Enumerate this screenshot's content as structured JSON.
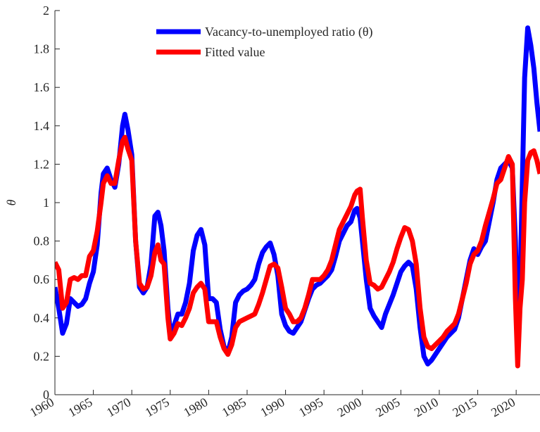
{
  "chart_data": {
    "type": "line",
    "ylabel": "θ",
    "x": [
      1960,
      1960.5,
      1961,
      1961.5,
      1962,
      1962.5,
      1963,
      1963.5,
      1964,
      1964.5,
      1965,
      1965.5,
      1966,
      1966.3,
      1966.8,
      1967.3,
      1967.8,
      1968.3,
      1968.8,
      1969.1,
      1969.5,
      1970,
      1970.5,
      1971,
      1971.5,
      1972,
      1972.5,
      1973,
      1973.4,
      1973.8,
      1974.2,
      1974.7,
      1975,
      1975.5,
      1976,
      1976.5,
      1977,
      1977.5,
      1978,
      1978.5,
      1979,
      1979.5,
      1980,
      1980.5,
      1981,
      1981.5,
      1982,
      1982.5,
      1983,
      1983.5,
      1984,
      1984.5,
      1985,
      1985.5,
      1986,
      1986.5,
      1987,
      1987.5,
      1988,
      1988.5,
      1989,
      1989.5,
      1990,
      1990.5,
      1991,
      1991.5,
      1992,
      1992.5,
      1993,
      1993.5,
      1994,
      1994.5,
      1995,
      1995.5,
      1996,
      1996.5,
      1997,
      1997.5,
      1998,
      1998.5,
      1999,
      1999.3,
      1999.7,
      2000,
      2000.5,
      2001,
      2001.5,
      2002,
      2002.5,
      2003,
      2003.5,
      2004,
      2004.5,
      2005,
      2005.5,
      2006,
      2006.5,
      2007,
      2007.5,
      2008,
      2008.5,
      2009,
      2009.5,
      2010,
      2010.5,
      2011,
      2011.5,
      2012,
      2012.5,
      2013,
      2013.5,
      2014,
      2014.5,
      2015,
      2015.5,
      2016,
      2016.5,
      2017,
      2017.5,
      2018,
      2018.5,
      2019,
      2019.5,
      2019.9,
      2020.2,
      2020.5,
      2020.8,
      2021.1,
      2021.5,
      2021.9,
      2022.3,
      2022.7,
      2023.1
    ],
    "series": [
      {
        "name": "Vacancy-to-unemployed ratio (θ)",
        "color": "#0000ff",
        "values": [
          0.56,
          0.45,
          0.32,
          0.37,
          0.5,
          0.48,
          0.46,
          0.47,
          0.5,
          0.58,
          0.64,
          0.78,
          1.05,
          1.15,
          1.18,
          1.12,
          1.08,
          1.2,
          1.4,
          1.46,
          1.38,
          1.25,
          0.8,
          0.56,
          0.53,
          0.56,
          0.68,
          0.93,
          0.95,
          0.88,
          0.75,
          0.45,
          0.33,
          0.36,
          0.42,
          0.42,
          0.48,
          0.58,
          0.75,
          0.83,
          0.86,
          0.78,
          0.5,
          0.5,
          0.48,
          0.34,
          0.25,
          0.22,
          0.3,
          0.48,
          0.52,
          0.54,
          0.55,
          0.57,
          0.6,
          0.68,
          0.74,
          0.77,
          0.79,
          0.73,
          0.62,
          0.42,
          0.36,
          0.33,
          0.32,
          0.35,
          0.38,
          0.44,
          0.5,
          0.55,
          0.57,
          0.58,
          0.6,
          0.62,
          0.65,
          0.72,
          0.8,
          0.84,
          0.88,
          0.9,
          0.96,
          0.97,
          0.92,
          0.8,
          0.6,
          0.45,
          0.41,
          0.38,
          0.35,
          0.42,
          0.47,
          0.52,
          0.58,
          0.64,
          0.67,
          0.69,
          0.67,
          0.55,
          0.35,
          0.2,
          0.16,
          0.18,
          0.21,
          0.24,
          0.27,
          0.3,
          0.32,
          0.34,
          0.4,
          0.5,
          0.6,
          0.7,
          0.76,
          0.73,
          0.77,
          0.8,
          0.9,
          1.0,
          1.12,
          1.18,
          1.2,
          1.22,
          1.18,
          0.8,
          0.3,
          0.55,
          1.1,
          1.65,
          1.91,
          1.82,
          1.7,
          1.52,
          1.37
        ]
      },
      {
        "name": "Fitted value",
        "color": "#ff0000",
        "values": [
          0.69,
          0.65,
          0.45,
          0.48,
          0.6,
          0.61,
          0.6,
          0.62,
          0.62,
          0.72,
          0.75,
          0.85,
          1.0,
          1.1,
          1.14,
          1.1,
          1.1,
          1.22,
          1.32,
          1.34,
          1.28,
          1.22,
          0.8,
          0.58,
          0.55,
          0.56,
          0.62,
          0.74,
          0.78,
          0.7,
          0.68,
          0.4,
          0.29,
          0.32,
          0.37,
          0.36,
          0.4,
          0.45,
          0.53,
          0.56,
          0.58,
          0.55,
          0.38,
          0.38,
          0.38,
          0.3,
          0.24,
          0.21,
          0.26,
          0.35,
          0.38,
          0.39,
          0.4,
          0.41,
          0.42,
          0.47,
          0.53,
          0.6,
          0.67,
          0.68,
          0.66,
          0.56,
          0.45,
          0.42,
          0.38,
          0.38,
          0.4,
          0.45,
          0.52,
          0.6,
          0.6,
          0.6,
          0.62,
          0.65,
          0.7,
          0.78,
          0.86,
          0.9,
          0.94,
          0.98,
          1.04,
          1.06,
          1.07,
          0.92,
          0.7,
          0.58,
          0.57,
          0.55,
          0.56,
          0.6,
          0.64,
          0.69,
          0.76,
          0.82,
          0.87,
          0.86,
          0.8,
          0.68,
          0.45,
          0.3,
          0.25,
          0.24,
          0.26,
          0.28,
          0.3,
          0.33,
          0.35,
          0.37,
          0.42,
          0.5,
          0.58,
          0.68,
          0.73,
          0.75,
          0.8,
          0.88,
          0.95,
          1.02,
          1.1,
          1.12,
          1.18,
          1.24,
          1.2,
          0.5,
          0.15,
          0.45,
          0.6,
          1.0,
          1.22,
          1.26,
          1.27,
          1.22,
          1.15
        ]
      }
    ],
    "xlim": [
      1960,
      2023.1
    ],
    "xticks": [
      1960,
      1965,
      1970,
      1975,
      1980,
      1985,
      1990,
      1995,
      2000,
      2005,
      2010,
      2015,
      2020
    ],
    "ylim": [
      0,
      2
    ],
    "yticks": [
      0,
      0.2,
      0.4,
      0.6,
      0.8,
      1,
      1.2,
      1.4,
      1.6,
      1.8,
      2
    ],
    "grid": false,
    "legend": "top"
  }
}
